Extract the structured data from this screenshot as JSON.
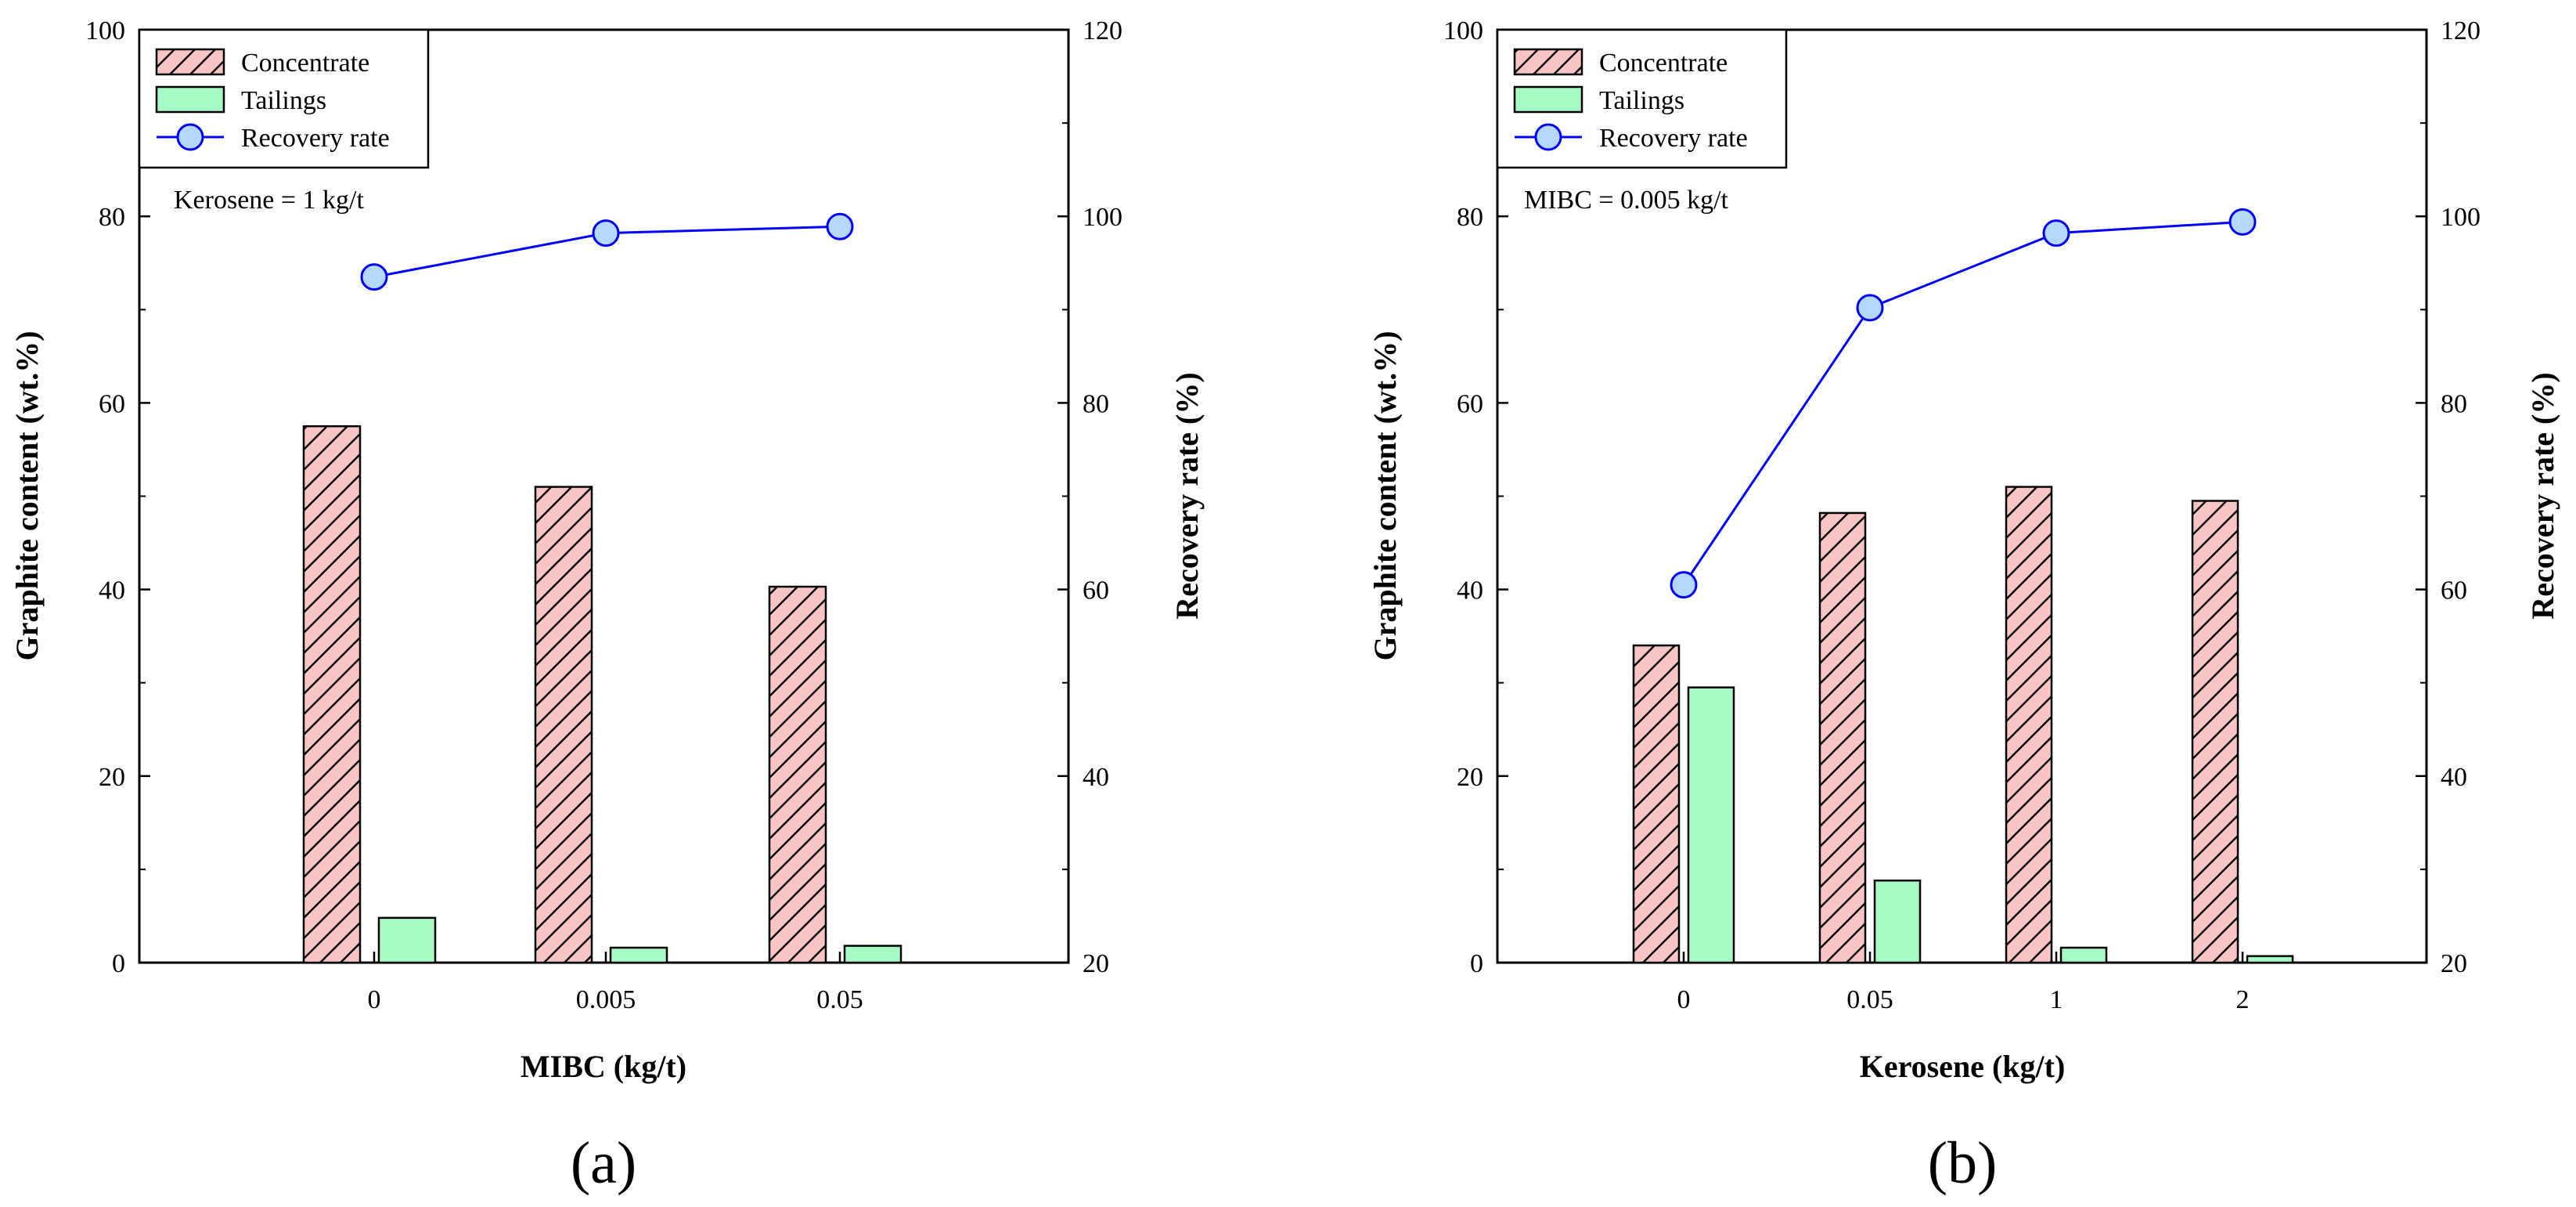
{
  "colors": {
    "concentrate_fill": "#f9c4c4",
    "tailings_fill": "#a6fbc4",
    "recovery_line": "#0000ff",
    "recovery_marker": "#b5d8ff",
    "axis": "#000000"
  },
  "legend_labels": {
    "concentrate": "Concentrate",
    "tailings": "Tailings",
    "recovery": "Recovery rate"
  },
  "chart_data": [
    {
      "type": "bar",
      "panel_label": "(a)",
      "xlabel": "MIBC (kg/t)",
      "ylabel": "Graphite content (wt.%)",
      "y2label": "Recovery rate (%)",
      "categories": [
        "0",
        "0.005",
        "0.05"
      ],
      "ylim": [
        0,
        100
      ],
      "y2lim": [
        20,
        120
      ],
      "yticks": [
        0,
        20,
        40,
        60,
        80,
        100
      ],
      "y2ticks": [
        20,
        40,
        60,
        80,
        100,
        120
      ],
      "annotation": "Kerosene = 1 kg/t",
      "legend_position": "top-left",
      "series": [
        {
          "name": "Concentrate",
          "axis": "left",
          "values": [
            57.5,
            51.0,
            40.3
          ]
        },
        {
          "name": "Tailings",
          "axis": "left",
          "values": [
            4.8,
            1.6,
            1.8
          ]
        },
        {
          "name": "Recovery rate",
          "axis": "right",
          "kind": "line",
          "values": [
            93.5,
            98.2,
            98.9
          ]
        }
      ]
    },
    {
      "type": "bar",
      "panel_label": "(b)",
      "xlabel": "Kerosene (kg/t)",
      "ylabel": "Graphite content (wt.%)",
      "y2label": "Recovery rate (%)",
      "categories": [
        "0",
        "0.05",
        "1",
        "2"
      ],
      "ylim": [
        0,
        100
      ],
      "y2lim": [
        20,
        120
      ],
      "yticks": [
        0,
        20,
        40,
        60,
        80,
        100
      ],
      "y2ticks": [
        20,
        40,
        60,
        80,
        100,
        120
      ],
      "annotation": "MIBC = 0.005 kg/t",
      "legend_position": "top-left",
      "series": [
        {
          "name": "Concentrate",
          "axis": "left",
          "values": [
            34.0,
            48.2,
            51.0,
            49.5
          ]
        },
        {
          "name": "Tailings",
          "axis": "left",
          "values": [
            29.5,
            8.8,
            1.6,
            0.7
          ]
        },
        {
          "name": "Recovery rate",
          "axis": "right",
          "kind": "line",
          "values": [
            60.5,
            90.2,
            98.2,
            99.4
          ]
        }
      ]
    }
  ]
}
